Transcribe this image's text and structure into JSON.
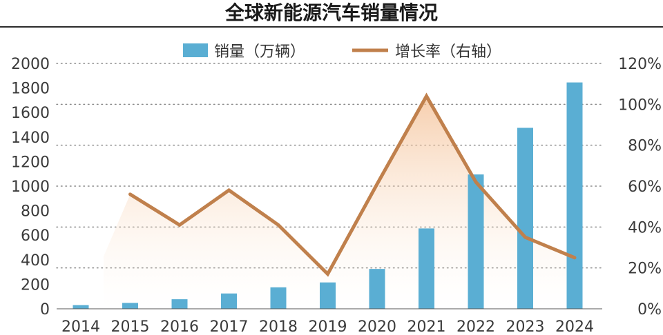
{
  "chart_data": {
    "type": "bar",
    "title": "全球新能源汽车销量情况",
    "categories": [
      "2014",
      "2015",
      "2016",
      "2017",
      "2018",
      "2019",
      "2020",
      "2021",
      "2022",
      "2023",
      "2024"
    ],
    "series": [
      {
        "name": "销量（万辆）",
        "type": "bar",
        "axis": "left",
        "color": "#5aaed3",
        "values": [
          30,
          48,
          78,
          125,
          175,
          215,
          325,
          655,
          1095,
          1475,
          1845
        ]
      },
      {
        "name": "增长率（右轴）",
        "type": "line",
        "axis": "right",
        "color": "#c0804c",
        "values": [
          null,
          56,
          41,
          58,
          41,
          17,
          61,
          104,
          62,
          35,
          25
        ]
      }
    ],
    "y_left": {
      "min": 0,
      "max": 2000,
      "ticks": [
        0,
        200,
        400,
        600,
        800,
        1000,
        1200,
        1400,
        1600,
        1800,
        2000
      ]
    },
    "y_right": {
      "min": 0,
      "max": 120,
      "ticks": [
        "0%",
        "20%",
        "40%",
        "60%",
        "80%",
        "100%",
        "120%"
      ]
    },
    "grid": "dotted",
    "legend_position": "top"
  }
}
